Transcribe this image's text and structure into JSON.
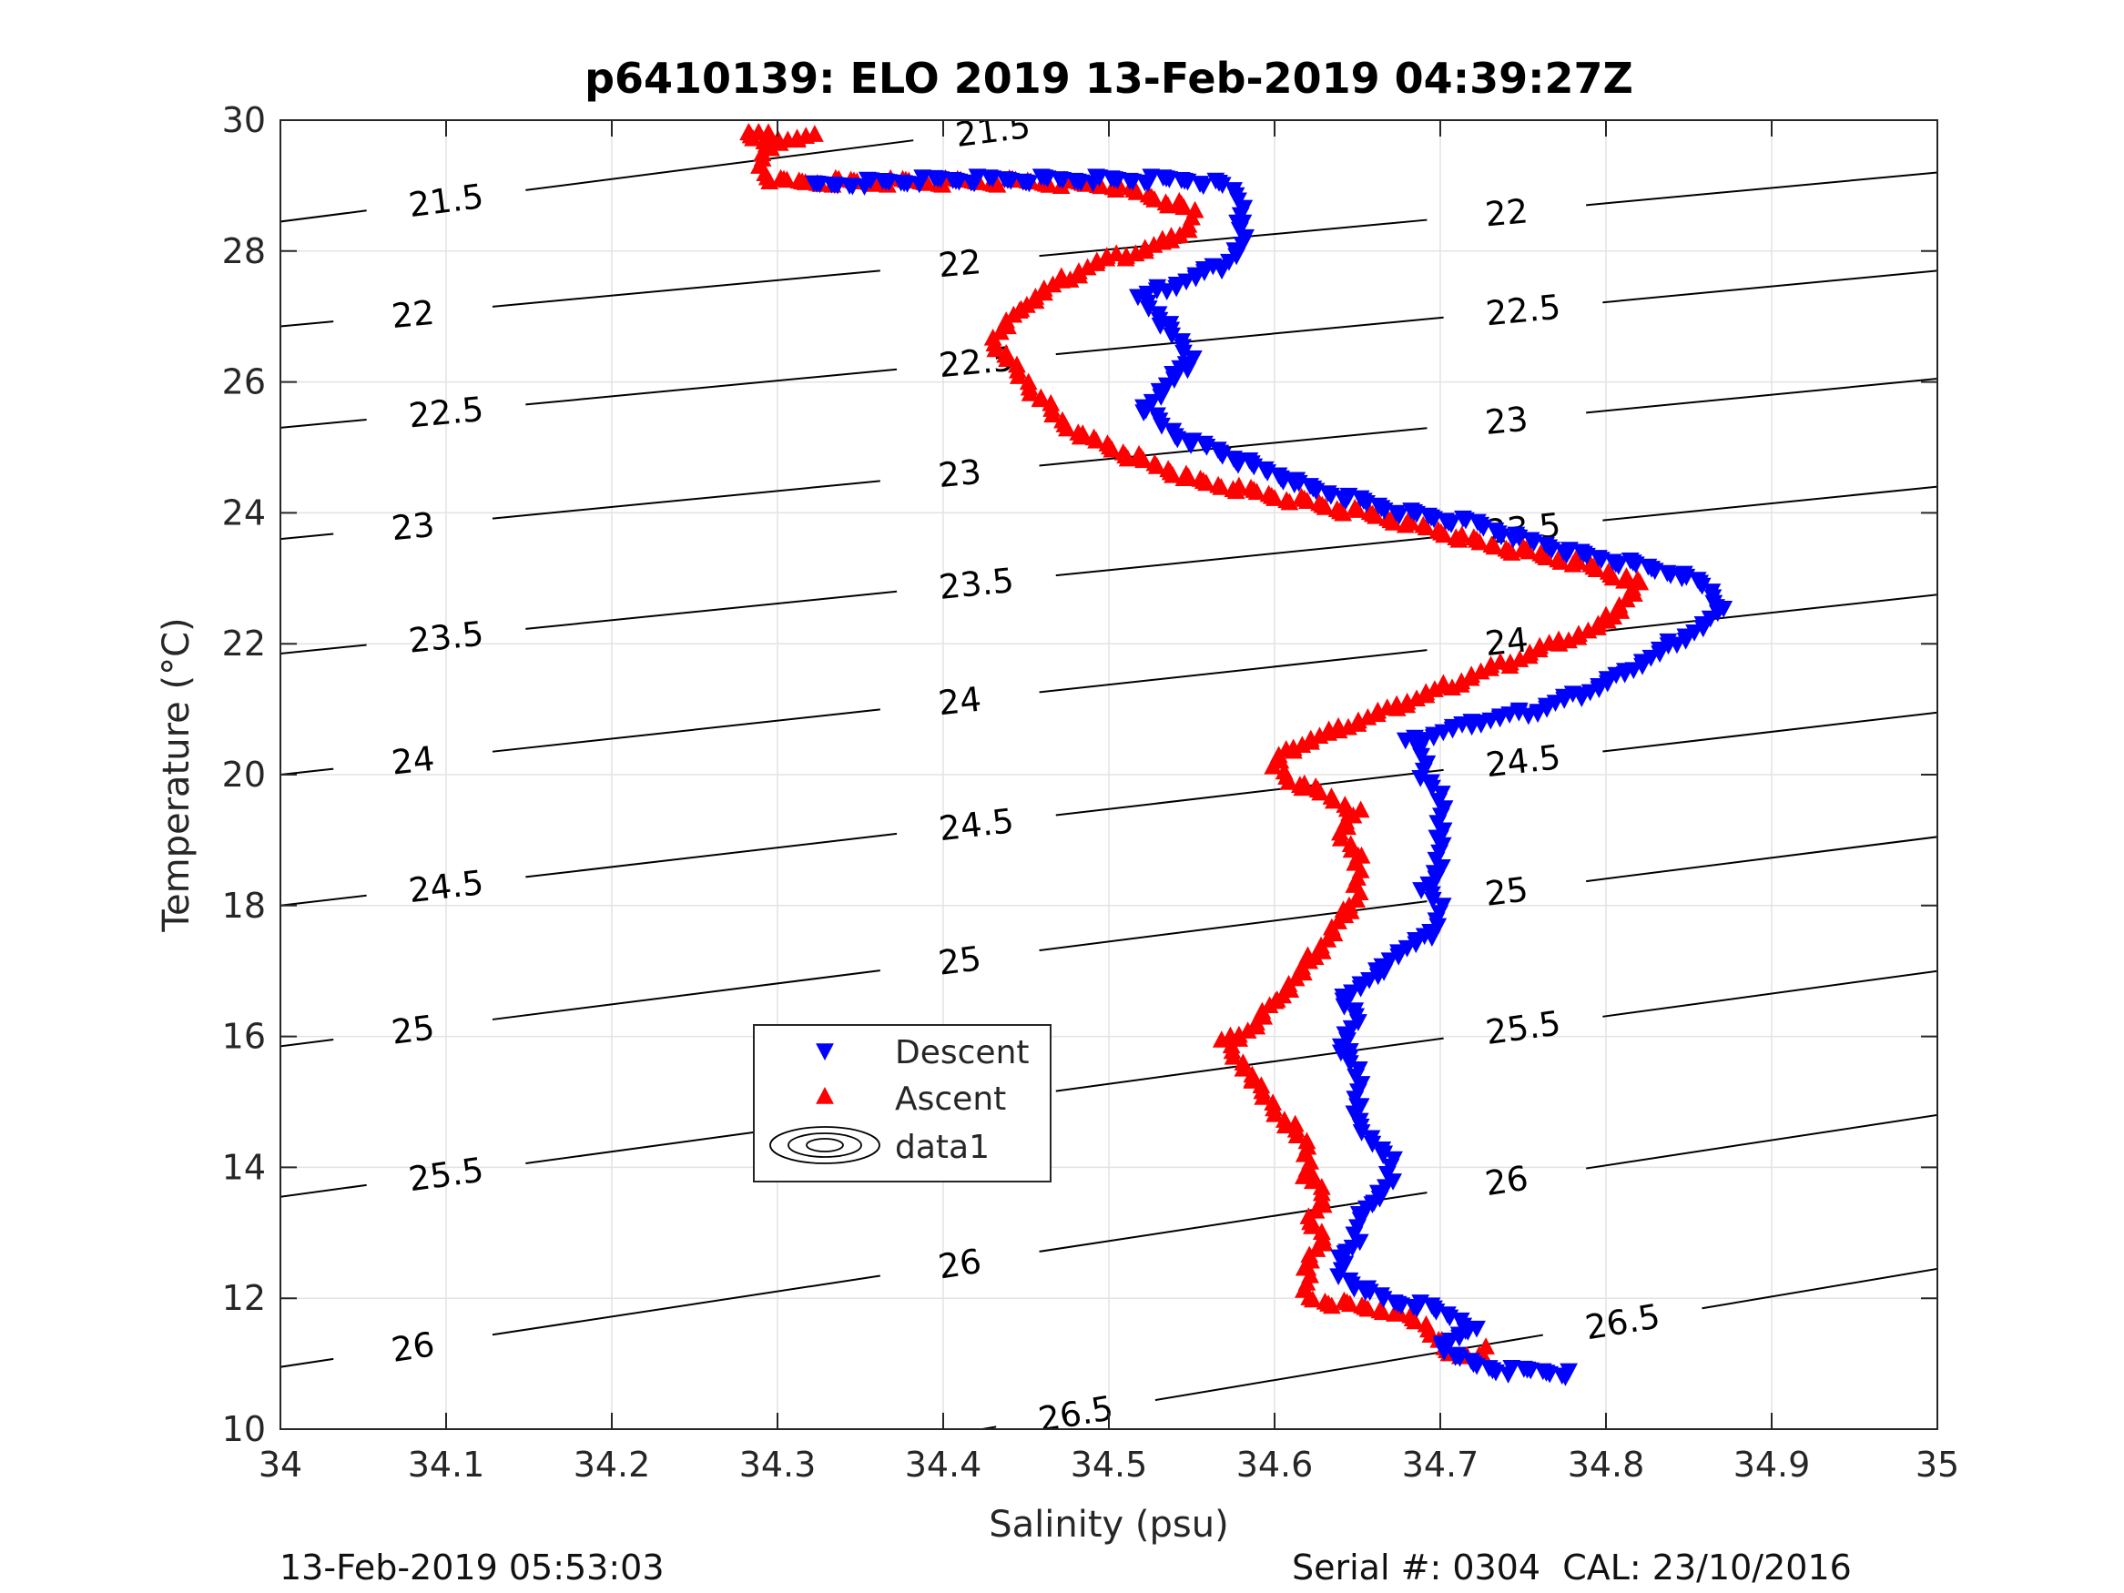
{
  "chart_data": {
    "type": "scatter",
    "title": "p6410139: ELO 2019 13-Feb-2019 04:39:27Z",
    "xlabel": "Salinity (psu)",
    "ylabel": "Temperature (°C)",
    "xlim": [
      34,
      35
    ],
    "ylim": [
      10,
      30
    ],
    "xticks": [
      "34",
      "34.1",
      "34.2",
      "34.3",
      "34.4",
      "34.5",
      "34.6",
      "34.7",
      "34.8",
      "34.9",
      "35"
    ],
    "yticks": [
      "10",
      "12",
      "14",
      "16",
      "18",
      "20",
      "22",
      "24",
      "26",
      "28",
      "30"
    ],
    "grid": true,
    "legend": {
      "position": "lower-left",
      "entries": [
        "Descent",
        "Ascent",
        "data1"
      ]
    },
    "colors": {
      "descent": "#0000ff",
      "ascent": "#ff0000",
      "contour": "#000000"
    },
    "series": [
      {
        "name": "Descent",
        "marker": "triangle-down",
        "color": "#0000ff",
        "points": [
          [
            34.78,
            10.85
          ],
          [
            34.76,
            10.9
          ],
          [
            34.74,
            10.9
          ],
          [
            34.72,
            11.0
          ],
          [
            34.71,
            11.1
          ],
          [
            34.7,
            11.3
          ],
          [
            34.72,
            11.5
          ],
          [
            34.71,
            11.7
          ],
          [
            34.69,
            11.9
          ],
          [
            34.67,
            11.95
          ],
          [
            34.65,
            12.2
          ],
          [
            34.64,
            12.35
          ],
          [
            34.64,
            12.6
          ],
          [
            34.65,
            12.9
          ],
          [
            34.65,
            13.2
          ],
          [
            34.66,
            13.5
          ],
          [
            34.67,
            13.8
          ],
          [
            34.67,
            14.1
          ],
          [
            34.66,
            14.4
          ],
          [
            34.65,
            14.7
          ],
          [
            34.65,
            15.1
          ],
          [
            34.65,
            15.5
          ],
          [
            34.64,
            15.9
          ],
          [
            34.65,
            16.3
          ],
          [
            34.64,
            16.6
          ],
          [
            34.66,
            16.9
          ],
          [
            34.67,
            17.2
          ],
          [
            34.69,
            17.5
          ],
          [
            34.7,
            17.8
          ],
          [
            34.7,
            18.0
          ],
          [
            34.69,
            18.3
          ],
          [
            34.7,
            18.6
          ],
          [
            34.7,
            18.9
          ],
          [
            34.7,
            19.1
          ],
          [
            34.7,
            19.4
          ],
          [
            34.7,
            19.7
          ],
          [
            34.69,
            20.0
          ],
          [
            34.69,
            20.3
          ],
          [
            34.68,
            20.5
          ],
          [
            34.72,
            20.8
          ],
          [
            34.76,
            21.0
          ],
          [
            34.78,
            21.2
          ],
          [
            34.8,
            21.4
          ],
          [
            34.82,
            21.7
          ],
          [
            34.84,
            22.0
          ],
          [
            34.86,
            22.3
          ],
          [
            34.87,
            22.6
          ],
          [
            34.86,
            22.9
          ],
          [
            34.84,
            23.1
          ],
          [
            34.82,
            23.2
          ],
          [
            34.78,
            23.4
          ],
          [
            34.75,
            23.6
          ],
          [
            34.72,
            23.85
          ],
          [
            34.68,
            24.0
          ],
          [
            34.65,
            24.2
          ],
          [
            34.62,
            24.4
          ],
          [
            34.6,
            24.6
          ],
          [
            34.58,
            24.8
          ],
          [
            34.56,
            25.0
          ],
          [
            34.54,
            25.2
          ],
          [
            34.53,
            25.4
          ],
          [
            34.52,
            25.6
          ],
          [
            34.53,
            25.8
          ],
          [
            34.54,
            26.1
          ],
          [
            34.55,
            26.4
          ],
          [
            34.54,
            26.7
          ],
          [
            34.53,
            27.0
          ],
          [
            34.52,
            27.3
          ],
          [
            34.55,
            27.6
          ],
          [
            34.57,
            27.8
          ],
          [
            34.58,
            28.1
          ],
          [
            34.58,
            28.3
          ],
          [
            34.58,
            28.6
          ],
          [
            34.58,
            28.8
          ],
          [
            34.57,
            29.0
          ],
          [
            34.55,
            29.1
          ],
          [
            34.5,
            29.1
          ],
          [
            34.45,
            29.1
          ],
          [
            34.4,
            29.1
          ],
          [
            34.35,
            29.05
          ],
          [
            34.32,
            29.0
          ]
        ]
      },
      {
        "name": "Ascent",
        "marker": "triangle-up",
        "color": "#ff0000",
        "points": [
          [
            34.73,
            11.2
          ],
          [
            34.71,
            11.1
          ],
          [
            34.7,
            11.2
          ],
          [
            34.7,
            11.4
          ],
          [
            34.69,
            11.6
          ],
          [
            34.67,
            11.8
          ],
          [
            34.64,
            11.9
          ],
          [
            34.62,
            12.0
          ],
          [
            34.62,
            12.3
          ],
          [
            34.62,
            12.6
          ],
          [
            34.63,
            12.9
          ],
          [
            34.62,
            13.2
          ],
          [
            34.63,
            13.5
          ],
          [
            34.62,
            13.9
          ],
          [
            34.62,
            14.3
          ],
          [
            34.61,
            14.6
          ],
          [
            34.6,
            14.9
          ],
          [
            34.59,
            15.2
          ],
          [
            34.58,
            15.6
          ],
          [
            34.57,
            15.9
          ],
          [
            34.59,
            16.2
          ],
          [
            34.6,
            16.5
          ],
          [
            34.61,
            16.8
          ],
          [
            34.62,
            17.1
          ],
          [
            34.63,
            17.4
          ],
          [
            34.64,
            17.8
          ],
          [
            34.65,
            18.1
          ],
          [
            34.65,
            18.4
          ],
          [
            34.65,
            18.8
          ],
          [
            34.64,
            19.1
          ],
          [
            34.65,
            19.4
          ],
          [
            34.63,
            19.7
          ],
          [
            34.61,
            19.9
          ],
          [
            34.6,
            20.1
          ],
          [
            34.61,
            20.4
          ],
          [
            34.63,
            20.6
          ],
          [
            34.66,
            20.9
          ],
          [
            34.69,
            21.2
          ],
          [
            34.71,
            21.4
          ],
          [
            34.74,
            21.7
          ],
          [
            34.77,
            22.0
          ],
          [
            34.8,
            22.3
          ],
          [
            34.81,
            22.6
          ],
          [
            34.82,
            22.9
          ],
          [
            34.8,
            23.1
          ],
          [
            34.77,
            23.3
          ],
          [
            34.73,
            23.5
          ],
          [
            34.7,
            23.7
          ],
          [
            34.67,
            23.9
          ],
          [
            34.64,
            24.05
          ],
          [
            34.61,
            24.2
          ],
          [
            34.58,
            24.35
          ],
          [
            34.55,
            24.5
          ],
          [
            34.53,
            24.7
          ],
          [
            34.51,
            24.9
          ],
          [
            34.49,
            25.1
          ],
          [
            34.47,
            25.4
          ],
          [
            34.46,
            25.7
          ],
          [
            34.45,
            26.0
          ],
          [
            34.44,
            26.3
          ],
          [
            34.43,
            26.6
          ],
          [
            34.44,
            26.9
          ],
          [
            34.45,
            27.2
          ],
          [
            34.47,
            27.5
          ],
          [
            34.49,
            27.8
          ],
          [
            34.52,
            28.0
          ],
          [
            34.54,
            28.2
          ],
          [
            34.55,
            28.4
          ],
          [
            34.55,
            28.6
          ],
          [
            34.53,
            28.8
          ],
          [
            34.5,
            29.0
          ],
          [
            34.45,
            29.05
          ],
          [
            34.4,
            29.05
          ],
          [
            34.35,
            29.05
          ],
          [
            34.3,
            29.05
          ],
          [
            34.29,
            29.2
          ],
          [
            34.29,
            29.4
          ],
          [
            34.3,
            29.6
          ],
          [
            34.28,
            29.8
          ],
          [
            34.31,
            29.7
          ],
          [
            34.32,
            29.75
          ]
        ]
      }
    ],
    "contours": [
      {
        "label": "21.5",
        "left_y": 28.45,
        "right_y": 31.7,
        "label_x": [
          34.1,
          34.43
        ]
      },
      {
        "label": "22",
        "left_y": 26.85,
        "right_y": 29.2,
        "label_x": [
          34.08,
          34.41,
          34.74
        ]
      },
      {
        "label": "22.5",
        "left_y": 25.3,
        "right_y": 27.7,
        "label_x": [
          34.1,
          34.42,
          34.75
        ]
      },
      {
        "label": "23",
        "left_y": 23.6,
        "right_y": 26.05,
        "label_x": [
          34.08,
          34.41,
          34.74
        ]
      },
      {
        "label": "23.5",
        "left_y": 21.85,
        "right_y": 24.4,
        "label_x": [
          34.1,
          34.42,
          34.75
        ]
      },
      {
        "label": "24",
        "left_y": 20.0,
        "right_y": 22.75,
        "label_x": [
          34.08,
          34.41,
          34.74
        ]
      },
      {
        "label": "24.5",
        "left_y": 18.0,
        "right_y": 20.95,
        "label_x": [
          34.1,
          34.42,
          34.75
        ]
      },
      {
        "label": "25",
        "left_y": 15.85,
        "right_y": 19.05,
        "label_x": [
          34.08,
          34.41,
          34.74
        ]
      },
      {
        "label": "25.5",
        "left_y": 13.55,
        "right_y": 17.0,
        "label_x": [
          34.1,
          34.42,
          34.75
        ]
      },
      {
        "label": "26",
        "left_y": 10.95,
        "right_y": 14.8,
        "label_x": [
          34.08,
          34.41,
          34.74
        ]
      },
      {
        "label": "26.5",
        "left_y": 8.2,
        "right_y": 12.45,
        "label_x": [
          34.48,
          34.81
        ]
      }
    ]
  },
  "footer": {
    "timestamp": "13-Feb-2019 05:53:03",
    "serial": "Serial #: 0304  CAL: 23/10/2016"
  }
}
